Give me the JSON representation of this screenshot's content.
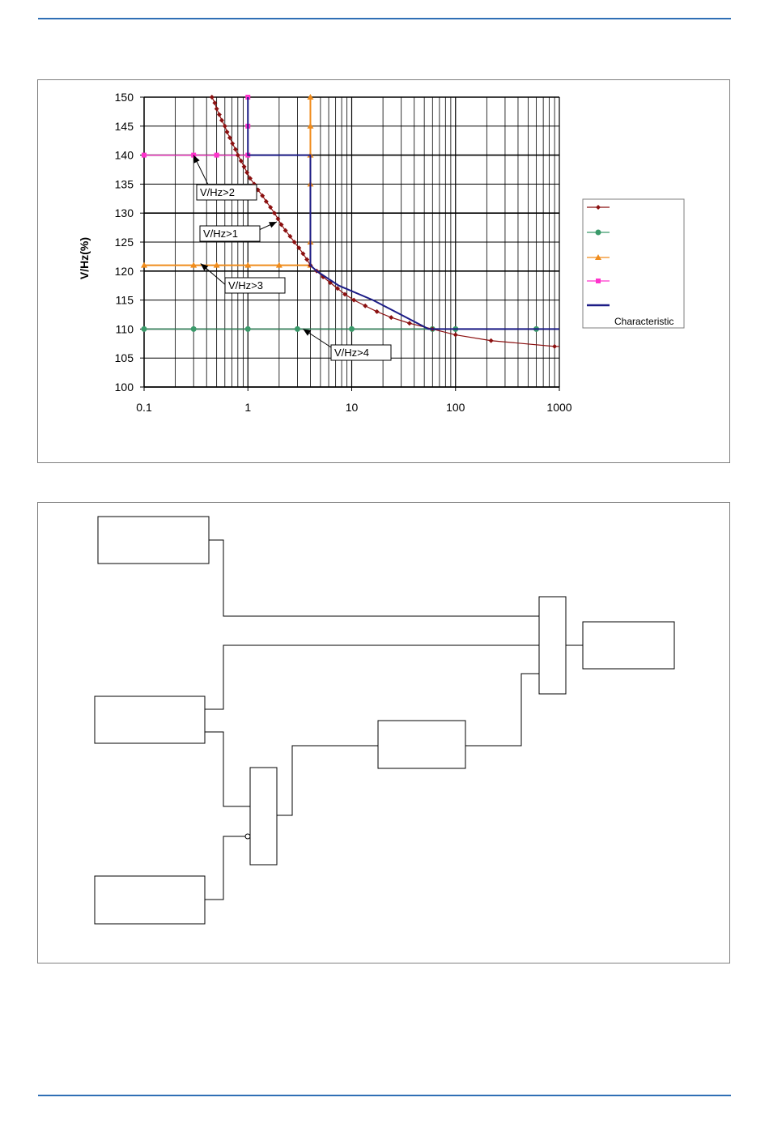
{
  "colors": {
    "rule": "#2f6fb5",
    "inverse": "#8b1010",
    "green": "#3a9a6a",
    "orange": "#f08c1c",
    "magenta": "#ff33cc",
    "blue": "#1c1c86"
  },
  "chart_data": {
    "type": "line",
    "x_scale": "log",
    "xlim": [
      0.1,
      1000
    ],
    "ylim": [
      100,
      150
    ],
    "ylabel": "V/Hz(%)",
    "xlabel": "",
    "grid": true,
    "legend_position": "right",
    "x_ticks": [
      "0.1",
      "1",
      "10",
      "100",
      "1000"
    ],
    "y_ticks": [
      "100",
      "105",
      "110",
      "115",
      "120",
      "125",
      "130",
      "135",
      "140",
      "145",
      "150"
    ],
    "legend_partial_text": "Characteristic",
    "series": [
      {
        "key": "inverse",
        "marker": "diamond",
        "points": [
          [
            0.45,
            150
          ],
          [
            0.48,
            149
          ],
          [
            0.5,
            148
          ],
          [
            0.53,
            147
          ],
          [
            0.56,
            146
          ],
          [
            0.6,
            145
          ],
          [
            0.63,
            144
          ],
          [
            0.67,
            143
          ],
          [
            0.71,
            142
          ],
          [
            0.76,
            141
          ],
          [
            0.8,
            140
          ],
          [
            0.86,
            139
          ],
          [
            0.92,
            138
          ],
          [
            0.98,
            137
          ],
          [
            1.05,
            136
          ],
          [
            1.15,
            135
          ],
          [
            1.25,
            134
          ],
          [
            1.38,
            133
          ],
          [
            1.5,
            132
          ],
          [
            1.65,
            131
          ],
          [
            1.8,
            130
          ],
          [
            1.95,
            129
          ],
          [
            2.1,
            128
          ],
          [
            2.3,
            127
          ],
          [
            2.55,
            126
          ],
          [
            2.8,
            125
          ],
          [
            3.1,
            124
          ],
          [
            3.4,
            123
          ],
          [
            3.7,
            122
          ],
          [
            4.0,
            121
          ],
          [
            4.6,
            120
          ],
          [
            5.3,
            119
          ],
          [
            6.2,
            118
          ],
          [
            7.3,
            117
          ],
          [
            8.6,
            116
          ],
          [
            10.5,
            115
          ],
          [
            13.5,
            114
          ],
          [
            17.5,
            113
          ],
          [
            24,
            112
          ],
          [
            36,
            111
          ],
          [
            60,
            110
          ],
          [
            100,
            109
          ],
          [
            220,
            108
          ],
          [
            900,
            107
          ]
        ],
        "line_extends_to": [
          1000,
          107
        ]
      },
      {
        "key": "definite-110",
        "marker": "circle",
        "points": [
          [
            0.1,
            110
          ],
          [
            0.3,
            110
          ],
          [
            1,
            110
          ],
          [
            3,
            110
          ],
          [
            10,
            110
          ],
          [
            60,
            110
          ],
          [
            100,
            110
          ],
          [
            600,
            110
          ]
        ],
        "line_extends_to": [
          1000,
          110
        ]
      },
      {
        "key": "definite-121",
        "marker": "triangle",
        "points": [
          [
            0.1,
            121
          ],
          [
            0.3,
            121
          ],
          [
            0.5,
            121
          ],
          [
            1,
            121
          ],
          [
            2,
            121
          ],
          [
            4,
            121
          ],
          [
            4,
            125
          ],
          [
            4,
            135
          ],
          [
            4,
            140
          ],
          [
            4,
            145
          ],
          [
            4,
            150
          ]
        ]
      },
      {
        "key": "definite-140",
        "marker": "square",
        "points": [
          [
            0.1,
            140
          ],
          [
            0.3,
            140
          ],
          [
            0.5,
            140
          ],
          [
            1,
            140
          ],
          [
            1,
            145
          ],
          [
            1,
            150
          ]
        ]
      },
      {
        "key": "combined-characteristic",
        "marker": "none",
        "points": [
          [
            1,
            150
          ],
          [
            1,
            140
          ],
          [
            4,
            140
          ],
          [
            4,
            121
          ],
          [
            4.6,
            120
          ],
          [
            7.5,
            117.5
          ],
          [
            16,
            115
          ],
          [
            55,
            110
          ],
          [
            1000,
            110
          ]
        ]
      }
    ],
    "annotations": [
      {
        "label": "V/Hz>2",
        "point_to": [
          0.3,
          140
        ]
      },
      {
        "label": "V/Hz>1",
        "point_to": [
          1.9,
          128.5
        ]
      },
      {
        "label": "V/Hz>3",
        "point_to": [
          0.35,
          121.3
        ]
      },
      {
        "label": "V/Hz>4",
        "point_to": [
          3.4,
          110
        ]
      }
    ]
  },
  "diagram": {
    "boxes": [
      "input-a",
      "input-b",
      "input-c",
      "timer",
      "and-gate-lower",
      "or-gate-upper",
      "output"
    ]
  }
}
